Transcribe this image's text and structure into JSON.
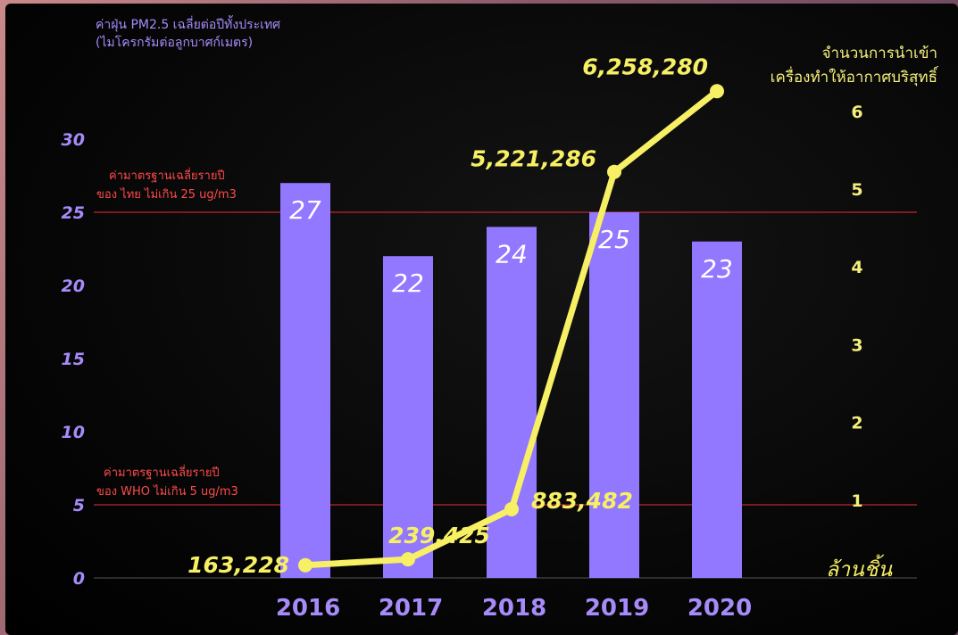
{
  "chart_data": {
    "type": "bar",
    "categories": [
      "2016",
      "2017",
      "2018",
      "2019",
      "2020"
    ],
    "series": [
      {
        "axis": "left",
        "chart_type": "bar",
        "values": [
          27,
          22,
          24,
          25,
          23
        ],
        "labels": [
          "27",
          "22",
          "24",
          "25",
          "23"
        ],
        "color": "#9277ff"
      },
      {
        "axis": "right",
        "chart_type": "line",
        "values": [
          163228,
          239425,
          883482,
          5221286,
          6258280
        ],
        "labels": [
          "163,228",
          "239,425",
          "883,482",
          "5,221,286",
          "6,258,280"
        ],
        "color": "#f7f064"
      }
    ],
    "left_axis": {
      "title_lines": [
        "ค่าฝุ่น PM2.5 เฉลี่ยต่อปีทั้งประเทศ",
        "(ไมโครกรัมต่อลูกบาศก์เมตร)"
      ],
      "ylim": [
        0,
        33
      ],
      "ticks": [
        "0",
        "5",
        "10",
        "15",
        "20",
        "25",
        "30"
      ]
    },
    "right_axis": {
      "title_lines": [
        "จำนวนการนำเข้า",
        "เครื่องทำให้อากาศบริสุทธิ์"
      ],
      "unit": "ล้านชิ้น",
      "ylim": [
        0,
        6.5
      ],
      "tick_values": [
        1,
        2,
        3,
        4,
        5,
        6
      ],
      "ticks": [
        "1",
        "2",
        "3",
        "4",
        "5",
        "6"
      ]
    },
    "reference_lines": [
      {
        "value": 25,
        "label_lines": [
          "ค่ามาตรฐานเฉลี่ยรายปี",
          "ของ ไทย ไม่เกิน 25 ug/m3"
        ],
        "color": "#c0262c"
      },
      {
        "value": 5,
        "label_lines": [
          "ค่ามาตรฐานเฉลี่ยรายปี",
          "ของ WHO ไม่เกิน 5 ug/m3"
        ],
        "color": "#c0262c"
      }
    ],
    "grid": false,
    "legend": "none"
  }
}
